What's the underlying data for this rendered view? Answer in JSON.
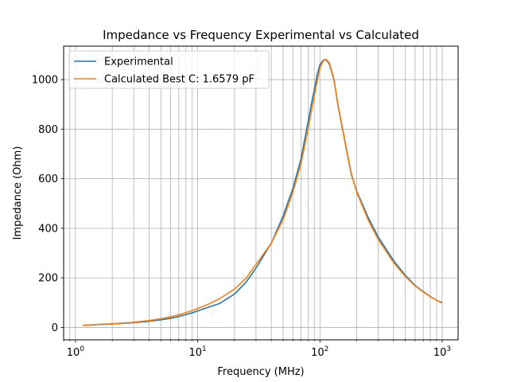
{
  "chart_data": {
    "type": "line",
    "title": "Impedance vs Frequency Experimental vs Calculated",
    "xlabel": "Frequency (MHz)",
    "ylabel": "Impedance (Ohm)",
    "xscale": "log",
    "xlim": [
      0.8,
      1350
    ],
    "ylim": [
      -50,
      1135
    ],
    "grid": "major and minor on log x-axis, major on y-axis",
    "legend_position": "upper-left",
    "x_ticks": [
      {
        "value": 1,
        "base": "10",
        "exp": "0"
      },
      {
        "value": 10,
        "base": "10",
        "exp": "1"
      },
      {
        "value": 100,
        "base": "10",
        "exp": "2"
      },
      {
        "value": 1000,
        "base": "10",
        "exp": "3"
      }
    ],
    "y_ticks": [
      0,
      200,
      400,
      600,
      800,
      1000
    ],
    "series": [
      {
        "name": "Experimental",
        "color": "#1f77b4",
        "x": [
          1.15,
          1.5,
          2,
          3,
          4,
          5,
          6,
          7,
          8,
          9,
          10,
          12,
          15,
          20,
          25,
          30,
          40,
          50,
          60,
          70,
          80,
          85,
          90,
          95,
          100,
          105,
          110,
          115,
          120,
          130,
          140,
          160,
          180,
          200,
          250,
          300,
          400,
          500,
          600,
          700,
          800,
          900,
          1000
        ],
        "y": [
          8,
          11,
          14,
          19,
          25,
          31,
          37,
          44,
          52,
          59,
          67,
          80,
          96,
          135,
          184,
          240,
          340,
          450,
          560,
          680,
          830,
          900,
          960,
          1020,
          1060,
          1075,
          1082,
          1075,
          1060,
          1000,
          900,
          750,
          620,
          550,
          440,
          365,
          270,
          210,
          170,
          145,
          125,
          110,
          100
        ]
      },
      {
        "name": "Calculated Best C: 1.6579 pF",
        "color": "#ff7f0e",
        "x": [
          1.15,
          1.5,
          2,
          3,
          4,
          5,
          6,
          7,
          8,
          9,
          10,
          12,
          15,
          20,
          25,
          30,
          40,
          50,
          60,
          70,
          80,
          85,
          90,
          95,
          100,
          105,
          110,
          115,
          120,
          130,
          140,
          160,
          180,
          200,
          250,
          300,
          400,
          500,
          600,
          700,
          800,
          900,
          1000
        ],
        "y": [
          9,
          12,
          15,
          21,
          28,
          35,
          43,
          51,
          60,
          68,
          77,
          92,
          115,
          155,
          200,
          255,
          340,
          435,
          545,
          660,
          800,
          870,
          935,
          995,
          1045,
          1070,
          1082,
          1078,
          1065,
          1005,
          905,
          755,
          625,
          545,
          430,
          355,
          262,
          205,
          168,
          143,
          124,
          110,
          98
        ]
      }
    ]
  }
}
